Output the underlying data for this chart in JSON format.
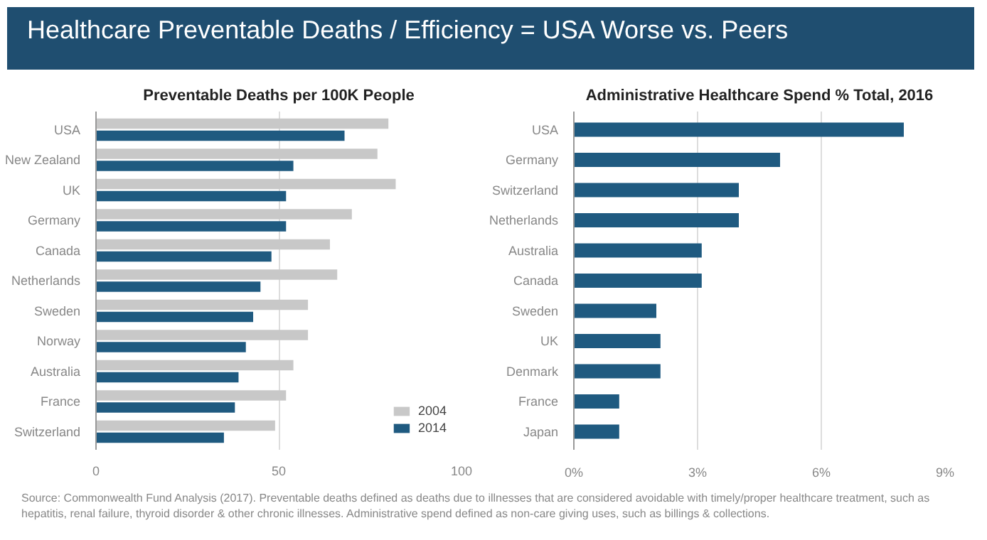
{
  "chart_data": [
    {
      "type": "bar",
      "orientation": "horizontal",
      "title": "Healthcare Preventable Deaths / Efficiency = USA Worse vs. Peers",
      "subtitle": "Preventable Deaths per 100K People",
      "categories": [
        "USA",
        "New Zealand",
        "UK",
        "Germany",
        "Canada",
        "Netherlands",
        "Sweden",
        "Norway",
        "Australia",
        "France",
        "Switzerland"
      ],
      "series": [
        {
          "name": "2004",
          "color": "#c8c8c8",
          "values": [
            80,
            77,
            82,
            70,
            64,
            66,
            58,
            58,
            54,
            52,
            49
          ]
        },
        {
          "name": "2014",
          "color": "#1f5a80",
          "values": [
            68,
            54,
            52,
            52,
            48,
            45,
            43,
            41,
            39,
            38,
            35
          ]
        }
      ],
      "xlim": [
        0,
        100
      ],
      "xticks": [
        0,
        50,
        100
      ],
      "grid": "x",
      "legend": "bottom right"
    },
    {
      "type": "bar",
      "orientation": "horizontal",
      "title": "Administrative Healthcare Spend % Total, 2016",
      "categories": [
        "USA",
        "Germany",
        "Switzerland",
        "Netherlands",
        "Australia",
        "Canada",
        "Sweden",
        "UK",
        "Denmark",
        "France",
        "Japan"
      ],
      "series": [
        {
          "color": "#1f5a80",
          "values": [
            8.0,
            5.0,
            4.0,
            4.0,
            3.1,
            3.1,
            2.0,
            2.1,
            2.1,
            1.1,
            1.1
          ]
        }
      ],
      "xlim": [
        0,
        9
      ],
      "xticks": [
        {
          "value": 0,
          "label": "0%"
        },
        {
          "value": 3,
          "label": "3%"
        },
        {
          "value": 6,
          "label": "6%"
        },
        {
          "value": 9,
          "label": "9%"
        }
      ],
      "grid": "x",
      "annotations": [
        "Source: Commonwealth Fund Analysis (2017). Preventable deaths defined as deaths due to illnesses that are considered avoidable with timely/proper healthcare treatment, such as hepatitis, renal failure, thyroid disorder & other chronic illnesses. Administrative spend defined as non-care giving uses, such as billings & collections."
      ]
    }
  ]
}
